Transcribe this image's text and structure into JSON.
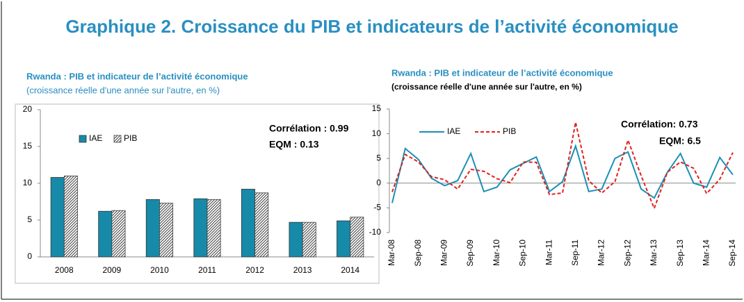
{
  "page_title": "Graphique 2. Croissance du PIB et indicateurs de l’activité économique",
  "chart_data": [
    {
      "type": "bar",
      "title": "Rwanda : PIB et indicateur de l’activité économique",
      "subtitle": "(croissance réelle d'une année sur l'autre, en %)",
      "categories": [
        "2008",
        "2009",
        "2010",
        "2011",
        "2012",
        "2013",
        "2014"
      ],
      "series": [
        {
          "name": "IAE",
          "color": "#168aa8",
          "values": [
            10.8,
            6.2,
            7.8,
            7.9,
            9.2,
            4.7,
            4.9
          ]
        },
        {
          "name": "PIB",
          "color": "#404040",
          "pattern": "hatch",
          "values": [
            11.0,
            6.3,
            7.3,
            7.8,
            8.7,
            4.7,
            5.4
          ]
        }
      ],
      "ylim": [
        0,
        20
      ],
      "yticks": [
        0,
        5,
        10,
        15,
        20
      ],
      "annotations": [
        "Corrélation : 0.99",
        "EQM : 0.13"
      ]
    },
    {
      "type": "line",
      "title": "Rwanda : PIB et indicateur de l’activité économique",
      "subtitle": "(croissance réelle d'une année sur l'autre, en %)",
      "categories": [
        "Mar-08",
        null,
        "Sep-08",
        null,
        "Mar-09",
        null,
        "Sep-09",
        null,
        "Mar-10",
        null,
        "Sep-10",
        null,
        "Mar-11",
        null,
        "Sep-11",
        null,
        "Mar-12",
        null,
        "Sep-12",
        null,
        "Mar-13",
        null,
        "Sep-13",
        null,
        "Mar-14",
        null,
        "Sep-14"
      ],
      "series": [
        {
          "name": "IAE",
          "color": "#1a8fb5",
          "values": [
            -4,
            7,
            4.8,
            1,
            -0.5,
            0.5,
            6,
            -1.7,
            -0.8,
            2.7,
            4,
            5.3,
            -1.7,
            0.3,
            7.5,
            -1.7,
            -1.2,
            5,
            6.3,
            -1.2,
            -3,
            2.2,
            6,
            0,
            -0.8,
            5.2,
            1.7
          ]
        },
        {
          "name": "PIB",
          "color": "#e02020",
          "dash": true,
          "values": [
            -1.8,
            5.8,
            4.3,
            1.3,
            0.7,
            -1.2,
            2.8,
            2.4,
            0.9,
            0.1,
            4.3,
            4.2,
            -2.3,
            -2,
            12.3,
            0.5,
            -2,
            0.3,
            8.7,
            1.5,
            -5.1,
            2.2,
            4.3,
            3,
            -2.1,
            0.8,
            6.2
          ]
        }
      ],
      "ylim": [
        -10,
        15
      ],
      "yticks": [
        -10,
        -5,
        0,
        5,
        10,
        15
      ],
      "annotations": [
        "Corrélation: 0.73",
        "EQM: 6.5"
      ]
    }
  ]
}
